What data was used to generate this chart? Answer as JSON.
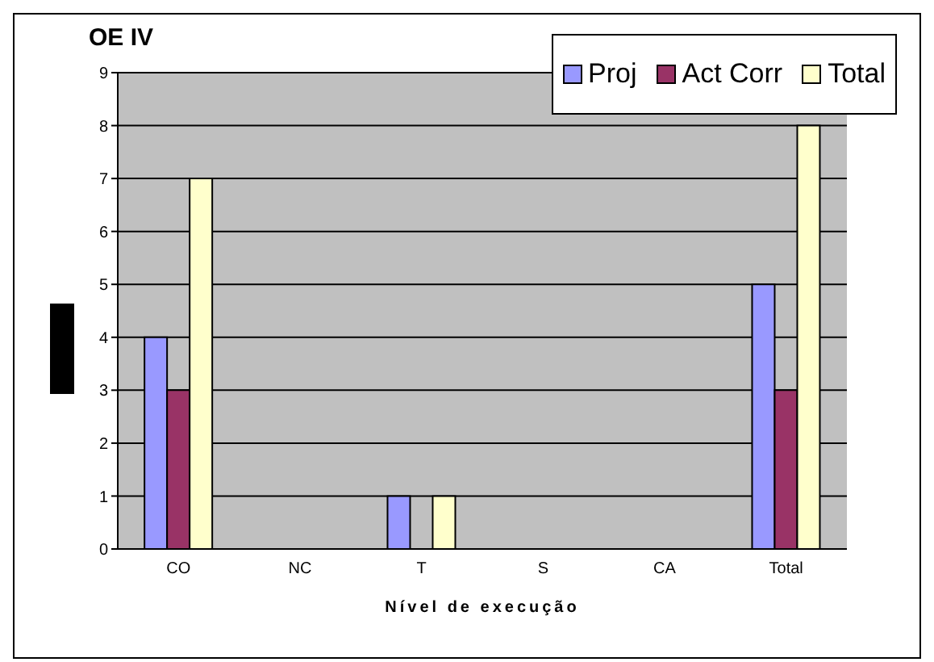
{
  "chart_data": {
    "type": "bar",
    "title": "OE IV",
    "xlabel": "Nível de execução",
    "categories": [
      "CO",
      "NC",
      "T",
      "S",
      "CA",
      "Total"
    ],
    "series": [
      {
        "name": "Proj",
        "color": "#9999ff",
        "values": [
          4,
          0,
          1,
          0,
          0,
          5
        ]
      },
      {
        "name": "Act Corr",
        "color": "#993366",
        "values": [
          3,
          0,
          0,
          0,
          0,
          3
        ]
      },
      {
        "name": "Total",
        "color": "#ffffcc",
        "values": [
          7,
          0,
          1,
          0,
          0,
          8
        ]
      }
    ],
    "ylim": [
      0,
      9
    ],
    "yticks": [
      0,
      1,
      2,
      3,
      4,
      5,
      6,
      7,
      8,
      9
    ],
    "grid": "y",
    "legend": "top right"
  }
}
